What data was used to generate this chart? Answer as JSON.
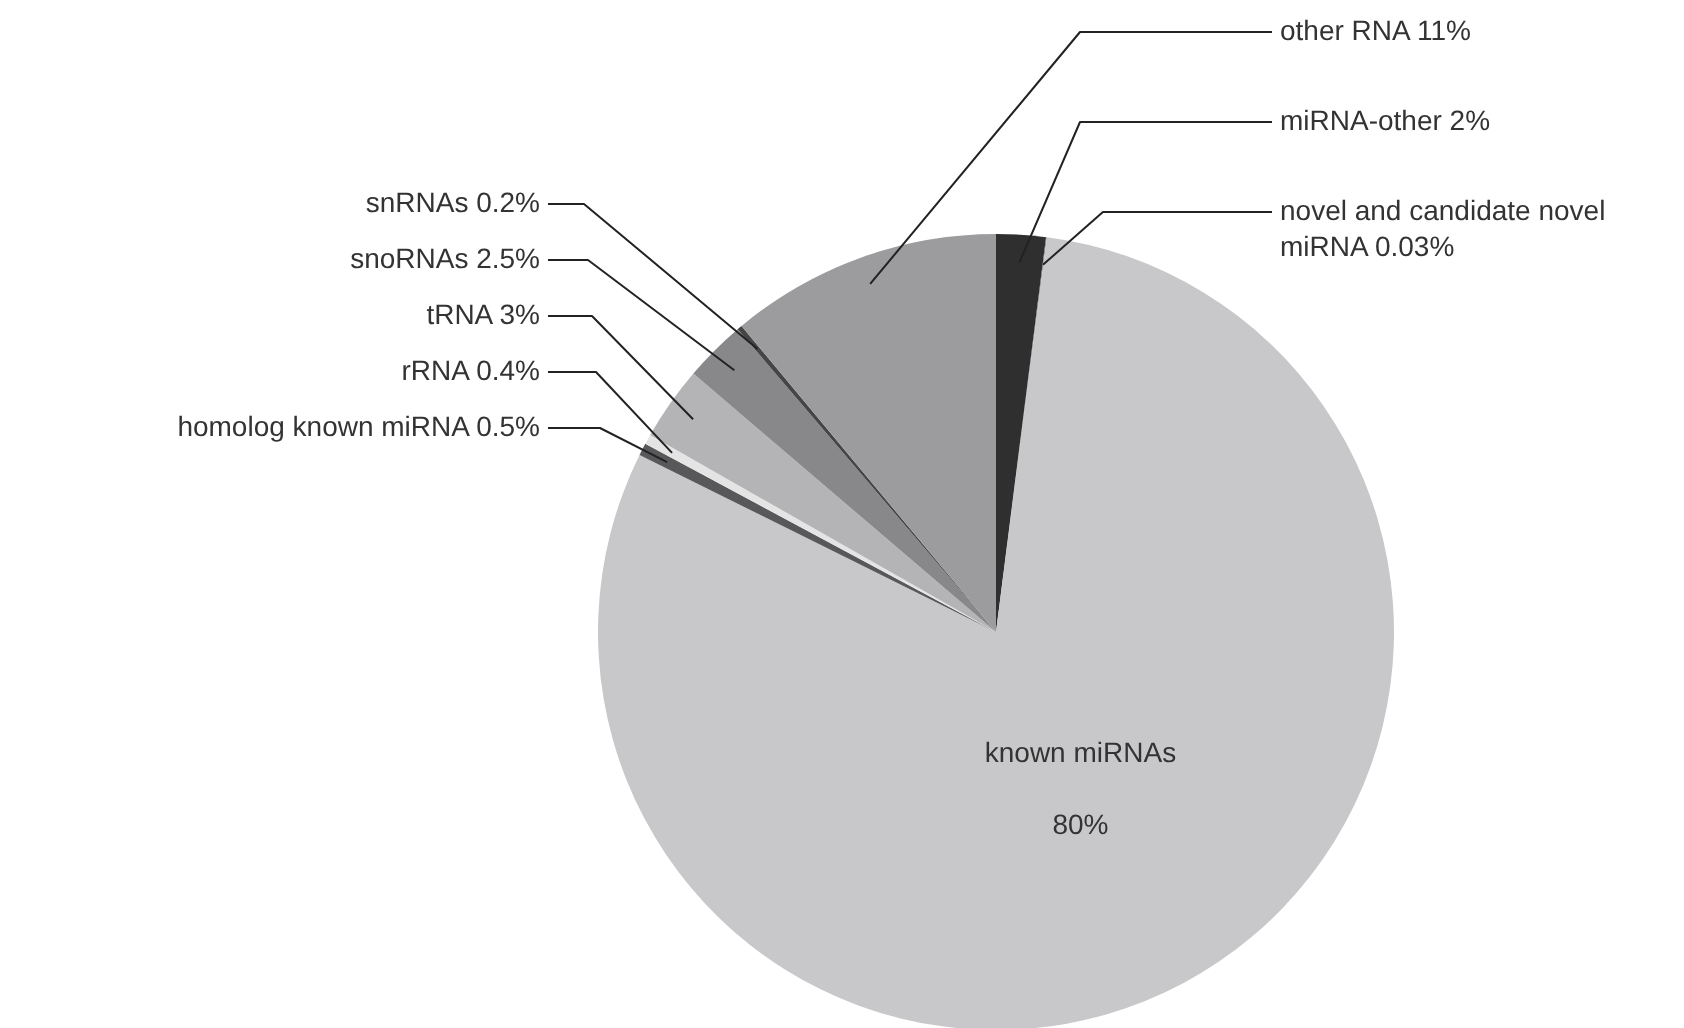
{
  "chart_data": {
    "type": "pie",
    "categories": [
      "miRNA-other",
      "novel and candidate novel miRNA",
      "known miRNAs",
      "homolog  known miRNA",
      "rRNA",
      "tRNA",
      "snoRNAs",
      "snRNAs",
      "other RNA"
    ],
    "values": [
      2,
      0.03,
      80,
      0.5,
      0.4,
      3,
      2.5,
      0.2,
      11
    ],
    "value_labels": [
      "2%",
      "0.03%",
      "80%",
      "0.5%",
      "0.4%",
      "3%",
      "2.5%",
      "0.2%",
      "11%"
    ],
    "colors": [
      "#2f2f2f",
      "#707072",
      "#c8c8ca",
      "#58585a",
      "#e4e4e4",
      "#b4b4b6",
      "#88888a",
      "#454545",
      "#9c9c9e"
    ]
  }
}
